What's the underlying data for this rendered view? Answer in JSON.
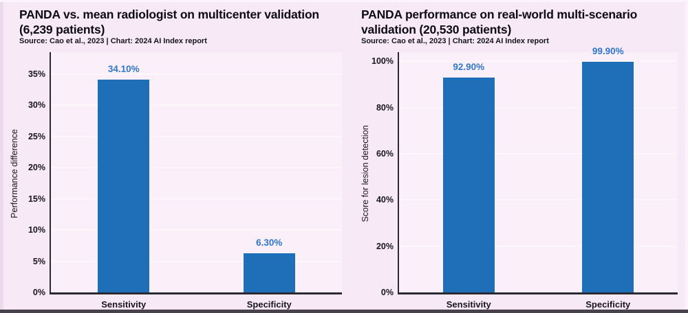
{
  "page": {
    "background_color": "#f8e9f7",
    "plot_background_color": "#fbeffa",
    "gridline_color": "#fdf7fc",
    "axis_color": "#2a2830",
    "bottom_edge_color": "#48424e"
  },
  "chart_data": [
    {
      "type": "bar",
      "title": "PANDA vs. mean radiologist on multicenter validation (6,239 patients)",
      "title_lines": [
        "PANDA vs. mean radiologist on multicenter validation",
        "(6,239 patients)"
      ],
      "source": "Source: Cao et al., 2023 | Chart: 2024 AI Index report",
      "categories": [
        "Sensitivity",
        "Specificity"
      ],
      "values": [
        34.1,
        6.3
      ],
      "value_labels": [
        "34.10%",
        "6.30%"
      ],
      "xlabel": "",
      "ylabel": "Performance difference",
      "ylim": [
        0,
        38.5
      ],
      "yticks": [
        0,
        5,
        10,
        15,
        20,
        25,
        30,
        35
      ],
      "ytick_labels": [
        "0%",
        "5%",
        "10%",
        "15%",
        "20%",
        "25%",
        "30%",
        "35%"
      ],
      "grid": true,
      "legend_position": "none",
      "bar_color": "#1e6fb8",
      "value_label_color": "#2e77cf"
    },
    {
      "type": "bar",
      "title": "PANDA performance on real-world multi-scenario validation (20,530 patients)",
      "title_lines": [
        "PANDA performance on real-world multi-scenario",
        "validation (20,530 patients)"
      ],
      "source": "Source: Cao et al., 2023 | Chart: 2024 AI Index report",
      "categories": [
        "Sensitivity",
        "Specificity"
      ],
      "values": [
        92.9,
        99.9
      ],
      "value_labels": [
        "92.90%",
        "99.90%"
      ],
      "xlabel": "",
      "ylabel": "Score for lesion detection",
      "ylim": [
        0,
        104
      ],
      "yticks": [
        0,
        20,
        40,
        60,
        80,
        100
      ],
      "ytick_labels": [
        "0%",
        "20%",
        "40%",
        "60%",
        "80%",
        "100%"
      ],
      "grid": true,
      "legend_position": "none",
      "bar_color": "#1e6fb8",
      "value_label_color": "#2e77cf"
    }
  ]
}
